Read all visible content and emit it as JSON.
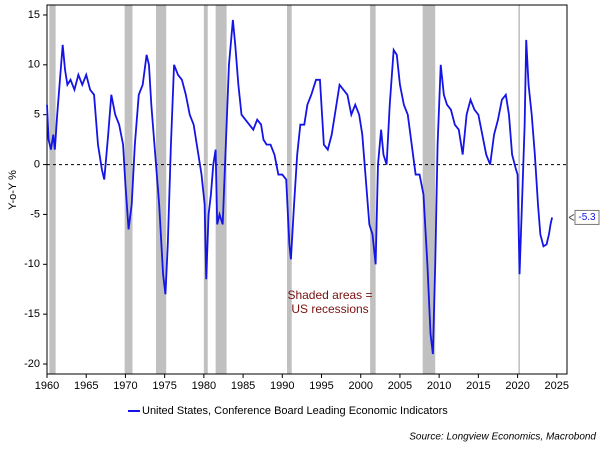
{
  "chart_data": {
    "type": "line",
    "y_label": "Y-o-Y %",
    "annotation": "Shaded areas =\nUS recessions",
    "source": "Source: Longview Economics, Macrobond",
    "legend": "bottom",
    "grid": false,
    "zero_line": true,
    "recession_color": "#c0c0c0",
    "recessions": [
      [
        1960.3,
        1961.1
      ],
      [
        1969.9,
        1970.9
      ],
      [
        1973.9,
        1975.2
      ],
      [
        1980.0,
        1980.5
      ],
      [
        1981.5,
        1982.9
      ],
      [
        1990.6,
        1991.2
      ],
      [
        2001.2,
        2001.9
      ],
      [
        2007.9,
        2009.5
      ],
      [
        2020.1,
        2020.3
      ]
    ],
    "last_value": -5.3,
    "xlim": [
      1960,
      2026.3
    ],
    "xticks": [
      1960,
      1965,
      1970,
      1975,
      1980,
      1985,
      1990,
      1995,
      2000,
      2005,
      2010,
      2015,
      2020,
      2025
    ],
    "ylim": [
      -21,
      16
    ],
    "yticks": [
      15,
      10,
      5,
      0,
      -5,
      -10,
      -15,
      -20
    ],
    "series": [
      {
        "name": "United States, Conference Board Leading Economic Indicators",
        "color": "#1414e6",
        "x": [
          1960.0,
          1960.2,
          1960.5,
          1960.8,
          1961.0,
          1961.3,
          1961.7,
          1962.0,
          1962.3,
          1962.6,
          1963.0,
          1963.5,
          1964.0,
          1964.5,
          1965.0,
          1965.5,
          1966.0,
          1966.5,
          1967.0,
          1967.3,
          1967.8,
          1968.2,
          1968.7,
          1969.2,
          1969.7,
          1970.0,
          1970.4,
          1970.8,
          1971.2,
          1971.7,
          1972.2,
          1972.7,
          1973.0,
          1973.3,
          1973.8,
          1974.3,
          1974.8,
          1975.1,
          1975.4,
          1975.8,
          1976.2,
          1976.7,
          1977.2,
          1977.7,
          1978.2,
          1978.7,
          1979.2,
          1979.7,
          1980.1,
          1980.3,
          1980.6,
          1980.9,
          1981.2,
          1981.5,
          1981.7,
          1982.0,
          1982.4,
          1982.8,
          1983.2,
          1983.7,
          1984.0,
          1984.4,
          1984.8,
          1985.3,
          1985.8,
          1986.3,
          1986.8,
          1987.3,
          1987.6,
          1988.0,
          1988.5,
          1989.0,
          1989.5,
          1990.0,
          1990.5,
          1990.9,
          1991.1,
          1991.5,
          1991.9,
          1992.3,
          1992.8,
          1993.2,
          1993.7,
          1994.3,
          1994.8,
          1995.3,
          1995.8,
          1996.3,
          1996.8,
          1997.3,
          1997.8,
          1998.3,
          1998.8,
          1999.3,
          1999.8,
          2000.2,
          2000.7,
          2001.1,
          2001.5,
          2001.9,
          2002.2,
          2002.6,
          2002.9,
          2003.3,
          2003.7,
          2004.2,
          2004.6,
          2005.0,
          2005.5,
          2006.0,
          2006.5,
          2007.0,
          2007.5,
          2008.0,
          2008.5,
          2008.9,
          2009.2,
          2009.5,
          2009.8,
          2010.2,
          2010.6,
          2011.0,
          2011.5,
          2012.0,
          2012.5,
          2013.0,
          2013.5,
          2014.0,
          2014.5,
          2015.0,
          2015.5,
          2016.0,
          2016.5,
          2017.0,
          2017.5,
          2018.0,
          2018.5,
          2018.9,
          2019.3,
          2019.8,
          2020.0,
          2020.25,
          2020.6,
          2020.9,
          2021.1,
          2021.4,
          2021.8,
          2022.2,
          2022.6,
          2022.9,
          2023.3,
          2023.7,
          2024.0,
          2024.2,
          2024.4
        ],
        "values": [
          6,
          2.5,
          1.5,
          3,
          1.5,
          5,
          9,
          12,
          9.5,
          8,
          8.5,
          7.5,
          9,
          8,
          9,
          7.5,
          7,
          2,
          -0.5,
          -1.5,
          3,
          7,
          5,
          4,
          2,
          -2,
          -6.5,
          -4,
          2,
          7,
          8,
          11,
          10,
          6,
          1,
          -4,
          -11,
          -13,
          -8,
          2,
          10,
          9,
          8.5,
          7,
          5,
          4,
          1.5,
          -1,
          -4,
          -11.5,
          -5,
          -3,
          0,
          1.5,
          -6,
          -5,
          -6,
          2,
          10,
          14.5,
          12,
          8,
          5,
          4.5,
          4,
          3.5,
          4.5,
          4,
          2.5,
          2,
          2,
          1,
          -1,
          -1,
          -1.5,
          -8,
          -9.5,
          -4,
          1,
          4,
          4,
          6,
          7,
          8.5,
          8.5,
          2,
          1.5,
          3,
          5.5,
          8,
          7.5,
          7,
          5,
          6,
          5,
          3,
          -2,
          -6,
          -7,
          -10,
          0,
          3.5,
          1,
          0,
          6,
          11.5,
          11,
          8,
          6,
          5,
          2,
          -1,
          -1,
          -3,
          -10,
          -17,
          -19,
          -10,
          2,
          10,
          7,
          6,
          5.5,
          4,
          3.5,
          1,
          5,
          6.5,
          5.5,
          5,
          3,
          1,
          0,
          3,
          4.5,
          6.5,
          7,
          5,
          1,
          -0.5,
          -1,
          -11,
          -3,
          4,
          12.5,
          8,
          5,
          1,
          -4,
          -7,
          -8.2,
          -8,
          -7,
          -6,
          -5.3
        ]
      }
    ]
  }
}
